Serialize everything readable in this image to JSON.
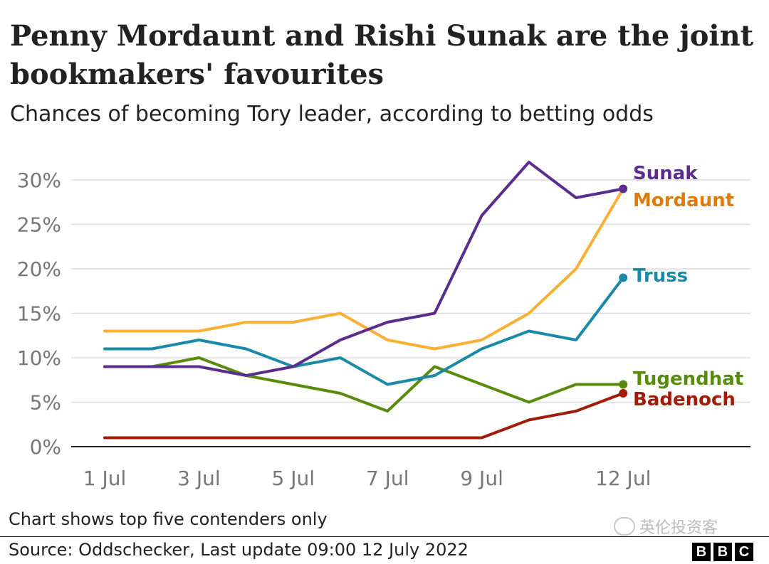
{
  "chart_data": {
    "type": "line",
    "title": "Penny Mordaunt and Rishi Sunak are the joint bookmakers' favourites",
    "subtitle": "Chances of becoming Tory leader, according to betting odds",
    "x": [
      "1 Jul",
      "2 Jul",
      "3 Jul",
      "4 Jul",
      "5 Jul",
      "6 Jul",
      "7 Jul",
      "8 Jul",
      "9 Jul",
      "10 Jul",
      "11 Jul",
      "12 Jul"
    ],
    "x_tick_labels": [
      "1 Jul",
      "3 Jul",
      "5 Jul",
      "7 Jul",
      "9 Jul",
      "12 Jul"
    ],
    "y_ticks": [
      "0%",
      "5%",
      "10%",
      "15%",
      "20%",
      "25%",
      "30%"
    ],
    "ylim": [
      0,
      30
    ],
    "grid": true,
    "series": [
      {
        "name": "Sunak",
        "color": "#5b2d8e",
        "values": [
          9,
          9,
          9,
          8,
          9,
          12,
          14,
          15,
          26,
          32,
          28,
          29
        ]
      },
      {
        "name": "Mordaunt",
        "color": "#fbb034",
        "values": [
          13,
          13,
          13,
          14,
          14,
          15,
          12,
          11,
          12,
          15,
          20,
          29
        ]
      },
      {
        "name": "Truss",
        "color": "#1b8aa8",
        "values": [
          11,
          11,
          12,
          11,
          9,
          10,
          7,
          8,
          11,
          13,
          12,
          19
        ]
      },
      {
        "name": "Tugendhat",
        "color": "#588c0d",
        "values": [
          9,
          9,
          10,
          8,
          7,
          6,
          4,
          9,
          7,
          5,
          7,
          7
        ]
      },
      {
        "name": "Badenoch",
        "color": "#a01c09",
        "values": [
          1,
          1,
          1,
          1,
          1,
          1,
          1,
          1,
          1,
          3,
          4,
          6
        ]
      }
    ],
    "label_colors": {
      "Sunak": "#5b2d8e",
      "Mordaunt": "#e07a0b",
      "Truss": "#1b8aa8",
      "Tugendhat": "#588c0d",
      "Badenoch": "#a01c09"
    }
  },
  "footer": {
    "note": "Chart shows top five contenders only",
    "source": "Source: Oddschecker, Last update 09:00 12 July 2022",
    "watermark": "英伦投资客",
    "logo": [
      "B",
      "B",
      "C"
    ]
  }
}
